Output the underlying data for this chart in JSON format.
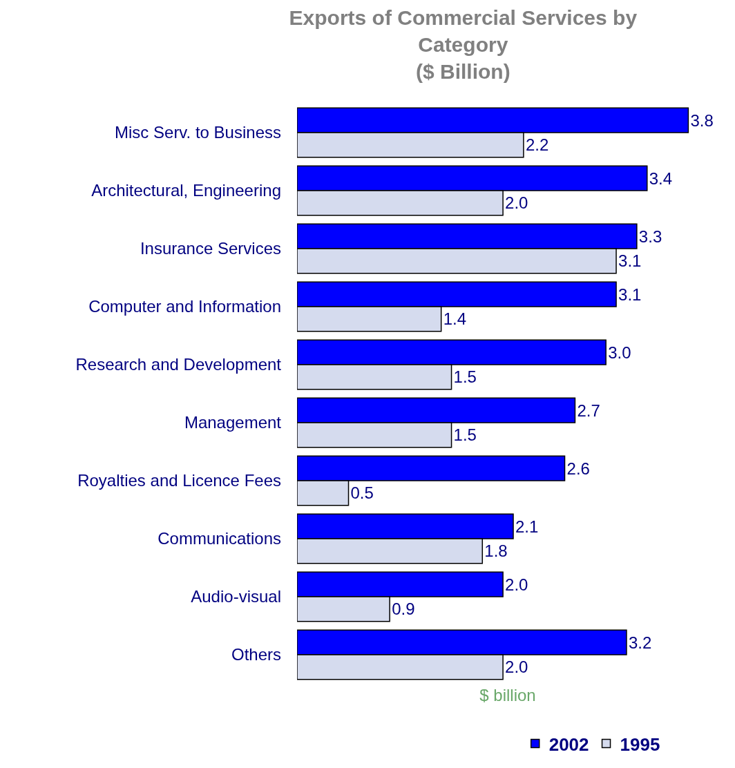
{
  "chart_data": {
    "type": "bar",
    "orientation": "horizontal",
    "title": "Exports of Commercial Services by\nCategory\n($ Billion)",
    "xlabel": "$ billion",
    "categories": [
      "Misc Serv. to Business",
      "Architectural, Engineering",
      "Insurance Services",
      "Computer and Information",
      "Research and Development",
      "Management",
      "Royalties and Licence Fees",
      "Communications",
      "Audio-visual",
      "Others"
    ],
    "series": [
      {
        "name": "2002",
        "color": "#0000ff",
        "values": [
          3.8,
          3.4,
          3.3,
          3.1,
          3.0,
          2.7,
          2.6,
          2.1,
          2.0,
          3.2
        ],
        "value_labels": [
          "3.8",
          "3.4",
          "3.3",
          "3.1",
          "3.0",
          "2.7",
          "2.6",
          "2.1",
          "2.0",
          "3.2"
        ]
      },
      {
        "name": "1995",
        "color": "#d5dbee",
        "values": [
          2.2,
          2.0,
          3.1,
          1.4,
          1.5,
          1.5,
          0.5,
          1.8,
          0.9,
          2.0
        ],
        "value_labels": [
          "2.2",
          "2.0",
          "3.1",
          "1.4",
          "1.5",
          "1.5",
          "0.5",
          "1.8",
          "0.9",
          "2.0"
        ]
      }
    ],
    "legend": "bottom"
  }
}
